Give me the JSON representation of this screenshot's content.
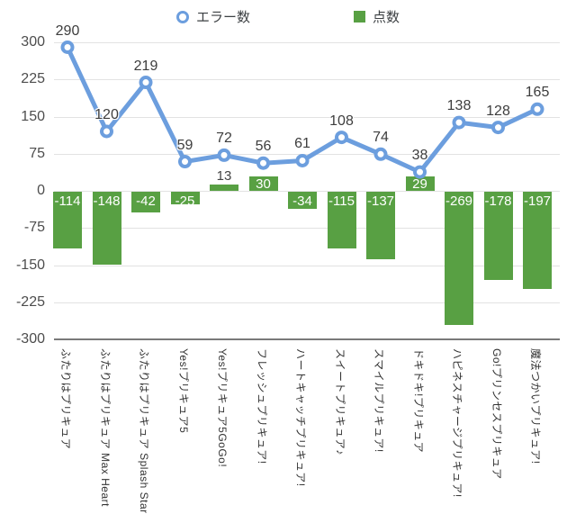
{
  "legend": {
    "items": [
      {
        "label": "エラー数",
        "marker": "open-circle",
        "color": "#6C9EDE"
      },
      {
        "label": "点数",
        "marker": "square",
        "color": "#58A043"
      }
    ]
  },
  "chart_data": {
    "type": "combo",
    "title": "",
    "xlabel": "",
    "ylabel": "",
    "ylim": [
      -300,
      300
    ],
    "yticks": [
      300,
      225,
      150,
      75,
      0,
      -75,
      -150,
      -225,
      -300
    ],
    "grid": true,
    "legend_position": "top",
    "categories": [
      "ふたりはプリキュア",
      "ふたりはプリキュア Max Heart",
      "ふたりはプリキュア Splash Star",
      "Yes!プリキュア5",
      "Yes!プリキュア5GoGo!",
      "フレッシュプリキュア!",
      "ハートキャッチプリキュア!",
      "スイートプリキュア♪",
      "スマイルプリキュア!",
      "ドキドキ!プリキュア",
      "ハピネスチャージプリキュア!",
      "Go!プリンセスプリキュア",
      "魔法つかいプリキュア!"
    ],
    "series": [
      {
        "name": "エラー数",
        "type": "line",
        "color": "#6C9EDE",
        "values": [
          290,
          120,
          219,
          59,
          72,
          56,
          61,
          108,
          74,
          38,
          138,
          128,
          165
        ]
      },
      {
        "name": "点数",
        "type": "bar",
        "color": "#58A043",
        "values": [
          -114,
          -148,
          -42,
          -25,
          13,
          30,
          -34,
          -115,
          -137,
          29,
          -269,
          -178,
          -197
        ]
      }
    ]
  }
}
